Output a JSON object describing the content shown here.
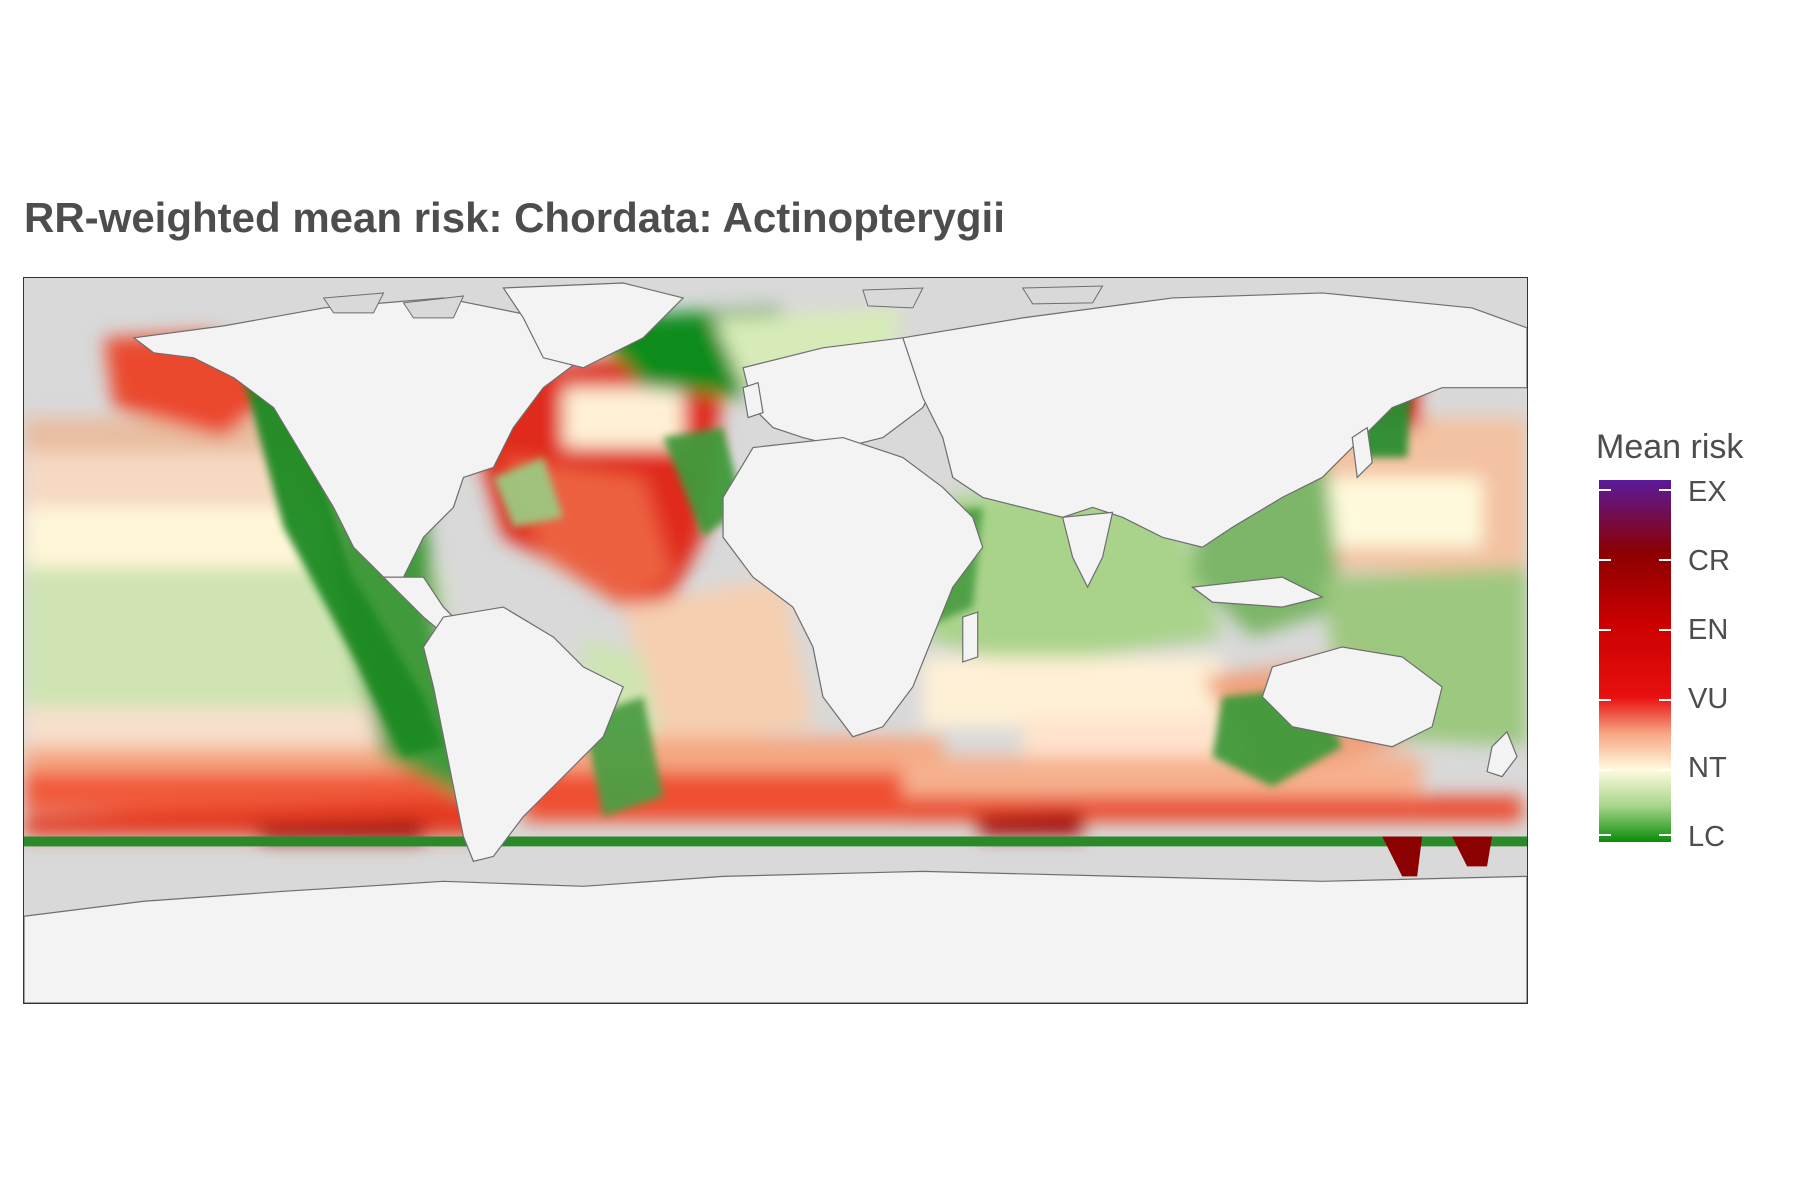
{
  "title": "RR-weighted mean risk: Chordata: Actinopterygii",
  "legend": {
    "title": "Mean risk",
    "categories": [
      "EX",
      "CR",
      "EN",
      "VU",
      "NT",
      "LC"
    ],
    "colors": {
      "EX": "#5a1a9a",
      "CR": "#8b0000",
      "EN": "#cc0000",
      "VU": "#e81010",
      "NT": "#fffbe0",
      "LC": "#0a8c0a"
    }
  },
  "map": {
    "land_color": "#f3f3f3",
    "ocean_no_data_color": "#d9d9d9",
    "coastline_color": "#6e6e6e"
  }
}
